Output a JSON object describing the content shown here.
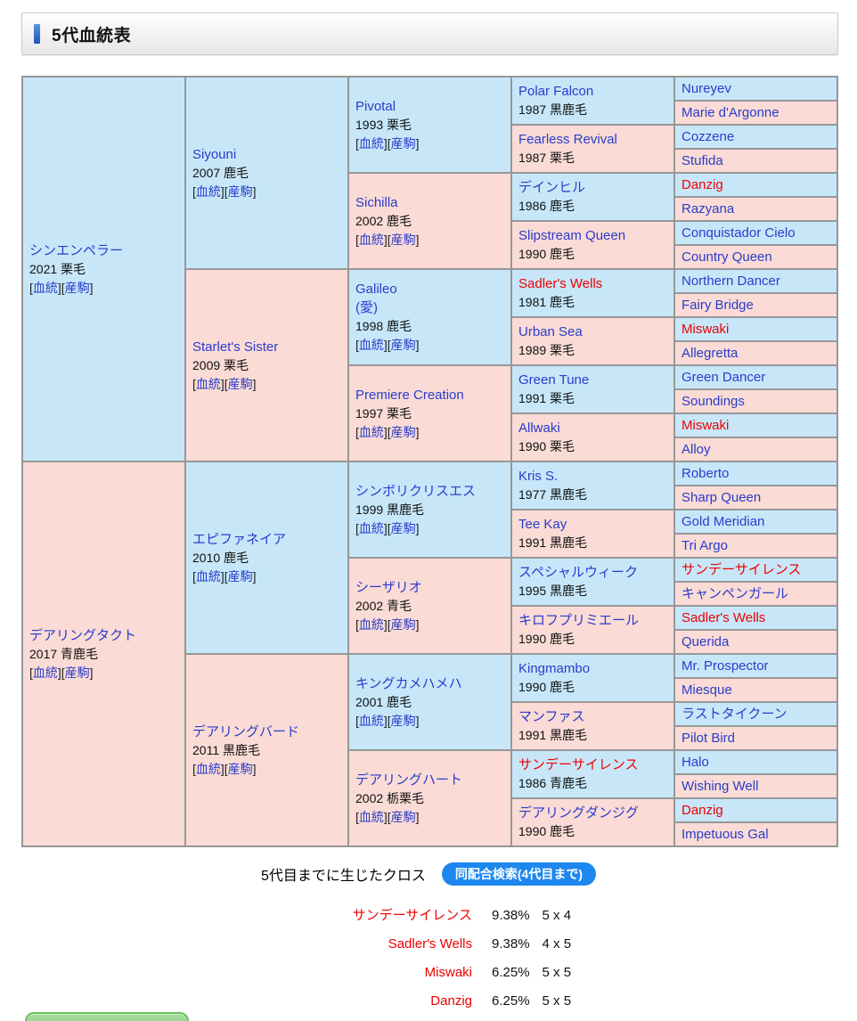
{
  "header": {
    "title": "5代血統表"
  },
  "pedigree": {
    "bloodline_label": "血統",
    "offspring_label": "産駒",
    "gen1": [
      {
        "name": "シンエンペラー",
        "year": "2021 栗毛",
        "links": true
      },
      {
        "name": "デアリングタクト",
        "year": "2017 青鹿毛",
        "links": true
      }
    ],
    "gen2": [
      {
        "name": "Siyouni",
        "year": "2007 鹿毛",
        "links": true
      },
      {
        "name": "Starlet's Sister",
        "year": "2009 栗毛",
        "links": true
      },
      {
        "name": "エピファネイア",
        "year": "2010 鹿毛",
        "links": true
      },
      {
        "name": "デアリングバード",
        "year": "2011 黒鹿毛",
        "links": true
      }
    ],
    "gen3": [
      {
        "name": "Pivotal",
        "year": "1993 栗毛",
        "links": true
      },
      {
        "name": "Sichilla",
        "year": "2002 鹿毛",
        "links": true
      },
      {
        "name": "Galileo",
        "name2": "(愛)",
        "year": "1998 鹿毛",
        "links": true
      },
      {
        "name": "Premiere Creation",
        "year": "1997 栗毛",
        "links": true
      },
      {
        "name": "シンボリクリスエス",
        "year": "1999 黒鹿毛",
        "links": true
      },
      {
        "name": "シーザリオ",
        "year": "2002 青毛",
        "links": true
      },
      {
        "name": "キングカメハメハ",
        "year": "2001 鹿毛",
        "links": true
      },
      {
        "name": "デアリングハート",
        "year": "2002 栃栗毛",
        "links": true
      }
    ],
    "gen4": [
      {
        "name": "Polar Falcon",
        "year": "1987 黒鹿毛"
      },
      {
        "name": "Fearless Revival",
        "year": "1987 栗毛"
      },
      {
        "name": "デインヒル",
        "year": "1986 鹿毛"
      },
      {
        "name": "Slipstream Queen",
        "year": "1990 鹿毛"
      },
      {
        "name": "Sadler's Wells",
        "year": "1981 鹿毛",
        "red": true
      },
      {
        "name": "Urban Sea",
        "year": "1989 栗毛"
      },
      {
        "name": "Green Tune",
        "year": "1991 栗毛"
      },
      {
        "name": "Allwaki",
        "year": "1990 栗毛"
      },
      {
        "name": "Kris S.",
        "year": "1977 黒鹿毛"
      },
      {
        "name": "Tee Kay",
        "year": "1991 黒鹿毛"
      },
      {
        "name": "スペシャルウィーク",
        "year": "1995 黒鹿毛"
      },
      {
        "name": "キロフプリミエール",
        "year": "1990 鹿毛"
      },
      {
        "name": "Kingmambo",
        "year": "1990 鹿毛"
      },
      {
        "name": "マンファス",
        "year": "1991 黒鹿毛"
      },
      {
        "name": "サンデーサイレンス",
        "year": "1986 青鹿毛",
        "red": true
      },
      {
        "name": "デアリングダンジグ",
        "year": "1990 鹿毛"
      }
    ],
    "gen5": [
      {
        "name": "Nureyev"
      },
      {
        "name": "Marie d'Argonne"
      },
      {
        "name": "Cozzene"
      },
      {
        "name": "Stufida"
      },
      {
        "name": "Danzig",
        "red": true
      },
      {
        "name": "Razyana"
      },
      {
        "name": "Conquistador Cielo"
      },
      {
        "name": "Country Queen"
      },
      {
        "name": "Northern Dancer"
      },
      {
        "name": "Fairy Bridge"
      },
      {
        "name": "Miswaki",
        "red": true
      },
      {
        "name": "Allegretta"
      },
      {
        "name": "Green Dancer"
      },
      {
        "name": "Soundings"
      },
      {
        "name": "Miswaki",
        "red": true
      },
      {
        "name": "Alloy"
      },
      {
        "name": "Roberto"
      },
      {
        "name": "Sharp Queen"
      },
      {
        "name": "Gold Meridian"
      },
      {
        "name": "Tri Argo"
      },
      {
        "name": "サンデーサイレンス",
        "red": true
      },
      {
        "name": "キャンペンガール"
      },
      {
        "name": "Sadler's Wells",
        "red": true
      },
      {
        "name": "Querida"
      },
      {
        "name": "Mr. Prospector"
      },
      {
        "name": "Miesque"
      },
      {
        "name": "ラストタイクーン"
      },
      {
        "name": "Pilot Bird"
      },
      {
        "name": "Halo"
      },
      {
        "name": "Wishing Well"
      },
      {
        "name": "Danzig",
        "red": true
      },
      {
        "name": "Impetuous Gal"
      }
    ]
  },
  "cross_section": {
    "label": "5代目までに生じたクロス",
    "button_label": "同配合検索(4代目まで)",
    "crosses": [
      {
        "name": "サンデーサイレンス",
        "pct": "9.38%",
        "pattern": "5 x 4"
      },
      {
        "name": "Sadler's Wells",
        "pct": "9.38%",
        "pattern": "4 x 5"
      },
      {
        "name": "Miswaki",
        "pct": "6.25%",
        "pattern": "5 x 5"
      },
      {
        "name": "Danzig",
        "pct": "6.25%",
        "pattern": "5 x 5"
      }
    ]
  },
  "colors": {
    "sire_cell_blue": "#c7e7f9",
    "dam_cell_pink": "#fadbd5",
    "link_blue": "#2a3ccc",
    "cross_red": "#ee0000",
    "search_button_blue": "#1d87ef",
    "accent_blue": "#2f6fd0",
    "bottom_button_green": "#69bd5e"
  }
}
